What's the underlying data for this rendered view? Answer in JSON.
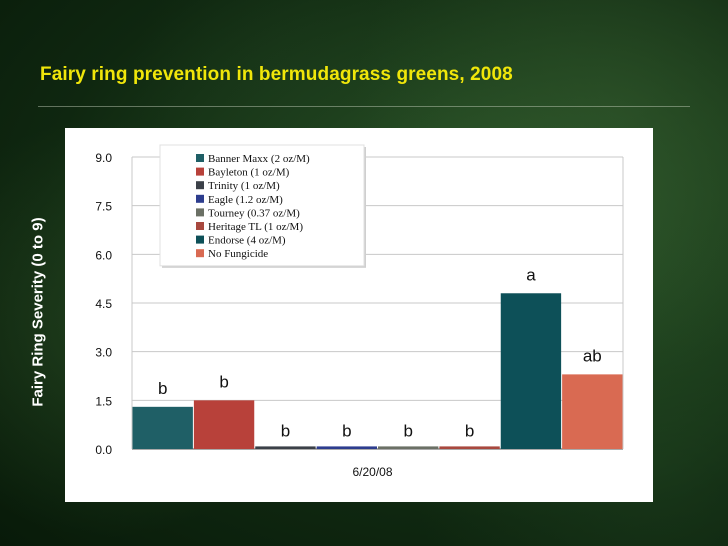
{
  "slide": {
    "title": "Fairy ring prevention in bermudagrass greens, 2008",
    "title_color": "#f0e60a"
  },
  "chart_data": {
    "type": "bar",
    "title": "Fairy ring prevention in bermudagrass greens, 2008",
    "xlabel": "6/20/08",
    "ylabel": "Fairy Ring Severity (0 to 9)",
    "ylim": [
      0,
      9
    ],
    "yticks": [
      "0.0",
      "1.5",
      "3.0",
      "4.5",
      "6.0",
      "7.5",
      "9.0"
    ],
    "grid": true,
    "legend_position": "top",
    "categories": [
      "6/20/08"
    ],
    "series": [
      {
        "name": "Banner Maxx (2 oz/M)",
        "values": [
          1.3
        ],
        "letter": "b",
        "color": "#1f5f66"
      },
      {
        "name": "Bayleton (1 oz/M)",
        "values": [
          1.5
        ],
        "letter": "b",
        "color": "#b8413a"
      },
      {
        "name": "Trinity (1 oz/M)",
        "values": [
          0.08
        ],
        "letter": "b",
        "color": "#3b4048"
      },
      {
        "name": "Eagle (1.2 oz/M)",
        "values": [
          0.08
        ],
        "letter": "b",
        "color": "#2d3d8e"
      },
      {
        "name": "Tourney (0.37 oz/M)",
        "values": [
          0.08
        ],
        "letter": "b",
        "color": "#6b7065"
      },
      {
        "name": "Heritage TL (1 oz/M)",
        "values": [
          0.08
        ],
        "letter": "b",
        "color": "#a8483e"
      },
      {
        "name": "Endorse (4 oz/M)",
        "values": [
          4.8
        ],
        "letter": "a",
        "color": "#0d5058"
      },
      {
        "name": "No Fungicide",
        "values": [
          2.3
        ],
        "letter": "ab",
        "color": "#d96a52"
      }
    ]
  }
}
